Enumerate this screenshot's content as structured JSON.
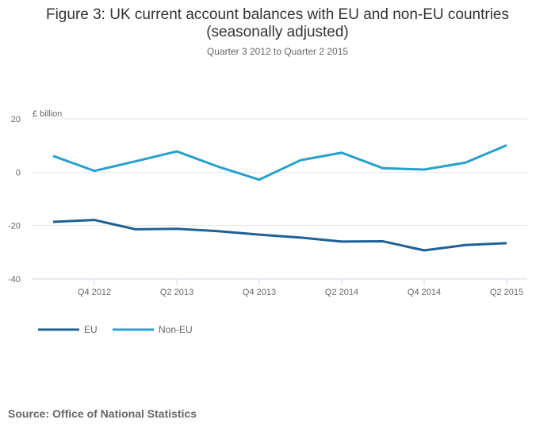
{
  "chart_data": {
    "type": "line",
    "title": "Figure 3: UK current account balances with EU and non-EU countries (seasonally adjusted)",
    "title_lines": [
      "Figure 3: UK current account balances with EU and non-EU countries",
      "(seasonally adjusted)"
    ],
    "subtitle": "Quarter 3 2012 to Quarter 2 2015",
    "ylabel": "£ billion",
    "ylim": [
      -40,
      20
    ],
    "yticks": [
      20,
      0,
      -20,
      -40
    ],
    "categories": [
      "Q3 2012",
      "Q4 2012",
      "Q1 2013",
      "Q2 2013",
      "Q3 2013",
      "Q4 2013",
      "Q1 2014",
      "Q2 2014",
      "Q3 2014",
      "Q4 2014",
      "Q1 2015",
      "Q2 2015"
    ],
    "xtick_labels": [
      "Q4 2012",
      "Q2 2013",
      "Q4 2013",
      "Q2 2014",
      "Q4 2014",
      "Q2 2015"
    ],
    "series": [
      {
        "name": "EU",
        "color": "#206095",
        "values": [
          -18.6,
          -17.9,
          -21.4,
          -21.2,
          -22.1,
          -23.4,
          -24.5,
          -26.0,
          -25.9,
          -29.3,
          -27.3,
          -26.6
        ]
      },
      {
        "name": "Non-EU",
        "color": "#27a0cc",
        "values": [
          6.1,
          0.5,
          4.1,
          7.8,
          2.1,
          -2.8,
          4.5,
          7.3,
          1.5,
          1.0,
          3.6,
          10.1
        ]
      }
    ],
    "legend": "bottom-left",
    "grid": true
  },
  "source": "Source: Office of National Statistics"
}
